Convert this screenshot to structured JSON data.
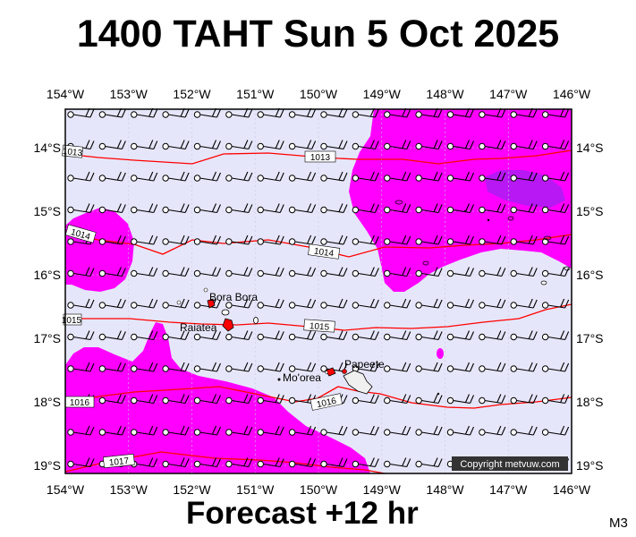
{
  "title": "1400 TAHT Sun 5 Oct 2025",
  "footer": "Forecast +12 hr",
  "model": "M3",
  "copyright": "Copyright metvuw.com",
  "lon_labels": [
    "154°W",
    "153°W",
    "152°W",
    "151°W",
    "150°W",
    "149°W",
    "148°W",
    "147°W",
    "146°W"
  ],
  "lat_labels": [
    "14°S",
    "15°S",
    "16°S",
    "17°S",
    "18°S",
    "19°S"
  ],
  "isobars": [
    "1013",
    "1014",
    "1014",
    "1015",
    "1015",
    "1016",
    "1017"
  ],
  "places": [
    "Bora Bora",
    "Raiatea",
    "Papeete",
    "Mo'orea"
  ],
  "colors": {
    "rain_heavy": "#ff00ff",
    "rain_core": "#a020f0",
    "background": "#e6e6fa",
    "isobar": "#ff0000"
  }
}
